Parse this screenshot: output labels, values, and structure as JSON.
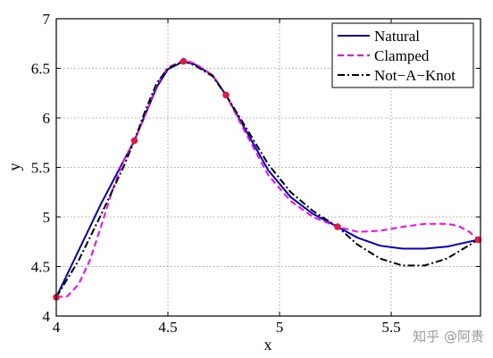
{
  "chart_data": {
    "type": "line",
    "xlabel": "x",
    "ylabel": "y",
    "xlim": [
      4,
      5.9
    ],
    "ylim": [
      4,
      7
    ],
    "x_ticks": [
      4,
      4.5,
      5,
      5.5
    ],
    "y_ticks": [
      4,
      4.5,
      5,
      5.5,
      6,
      6.5,
      7
    ],
    "grid": true,
    "legend_position": "top-right",
    "knots": {
      "x": [
        4.0,
        4.35,
        4.57,
        4.76,
        5.26,
        5.89
      ],
      "y": [
        4.19,
        5.77,
        6.57,
        6.23,
        4.9,
        4.77
      ],
      "color": "#e8173f"
    },
    "series": [
      {
        "name": "Natural",
        "style": "solid",
        "color": "#0000c8",
        "x": [
          4.0,
          4.1,
          4.2,
          4.3,
          4.35,
          4.4,
          4.45,
          4.5,
          4.57,
          4.62,
          4.7,
          4.76,
          4.85,
          4.95,
          5.05,
          5.15,
          5.26,
          5.35,
          5.45,
          5.55,
          5.65,
          5.75,
          5.89
        ],
        "y": [
          4.19,
          4.66,
          5.13,
          5.56,
          5.77,
          6.04,
          6.31,
          6.49,
          6.57,
          6.54,
          6.43,
          6.23,
          5.87,
          5.47,
          5.2,
          5.03,
          4.9,
          4.79,
          4.71,
          4.68,
          4.68,
          4.7,
          4.77
        ]
      },
      {
        "name": "Clamped",
        "style": "dashed",
        "color": "#ff00ff",
        "x": [
          4.0,
          4.05,
          4.1,
          4.15,
          4.2,
          4.25,
          4.3,
          4.35,
          4.4,
          4.45,
          4.5,
          4.57,
          4.62,
          4.7,
          4.76,
          4.85,
          4.95,
          5.05,
          5.15,
          5.26,
          5.35,
          5.45,
          5.55,
          5.65,
          5.75,
          5.8,
          5.85,
          5.89
        ],
        "y": [
          4.19,
          4.2,
          4.32,
          4.56,
          4.9,
          5.26,
          5.56,
          5.77,
          6.04,
          6.33,
          6.51,
          6.58,
          6.55,
          6.43,
          6.23,
          5.84,
          5.42,
          5.16,
          5.0,
          4.9,
          4.85,
          4.86,
          4.9,
          4.93,
          4.93,
          4.91,
          4.85,
          4.77
        ]
      },
      {
        "name": "Not−A−Knot",
        "style": "dashdot",
        "color": "#000000",
        "x": [
          4.0,
          4.1,
          4.2,
          4.3,
          4.35,
          4.4,
          4.45,
          4.5,
          4.57,
          4.62,
          4.7,
          4.76,
          4.85,
          4.95,
          5.05,
          5.15,
          5.26,
          5.35,
          5.45,
          5.55,
          5.65,
          5.75,
          5.89
        ],
        "y": [
          4.19,
          4.56,
          5.02,
          5.5,
          5.77,
          6.08,
          6.35,
          6.5,
          6.57,
          6.53,
          6.42,
          6.23,
          5.9,
          5.53,
          5.25,
          5.06,
          4.9,
          4.72,
          4.58,
          4.51,
          4.51,
          4.58,
          4.77
        ]
      }
    ]
  },
  "watermark": "知乎 @阿贵"
}
